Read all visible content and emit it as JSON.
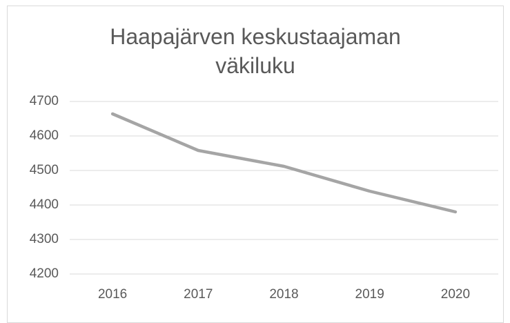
{
  "chart_data": {
    "type": "line",
    "title": "Haapajärven keskustaajaman väkiluku",
    "categories": [
      "2016",
      "2017",
      "2018",
      "2019",
      "2020"
    ],
    "series": [
      {
        "name": "Väkiluku",
        "color": "#a5a5a5",
        "values": [
          4664,
          4558,
          4512,
          4440,
          4380
        ]
      }
    ],
    "ylim": [
      4200,
      4700
    ],
    "yticks": [
      4200,
      4300,
      4400,
      4500,
      4600,
      4700
    ],
    "grid": true
  }
}
